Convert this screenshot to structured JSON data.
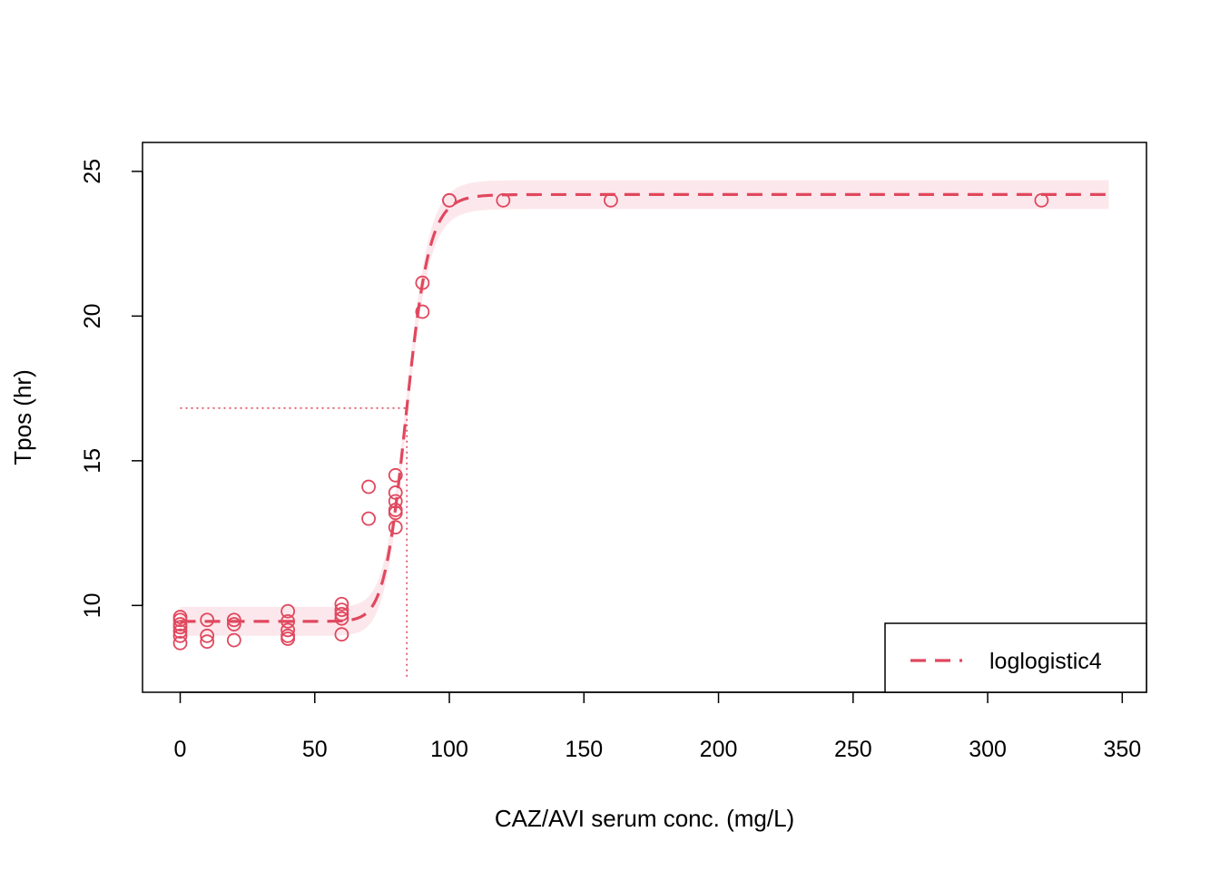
{
  "chart_data": {
    "type": "scatter",
    "xlabel": "CAZ/AVI serum conc. (mg/L)",
    "ylabel": "Tpos (hr)",
    "xlim": [
      -14,
      359
    ],
    "ylim": [
      7.0,
      26.0
    ],
    "xticks": [
      0,
      50,
      100,
      150,
      200,
      250,
      300,
      350
    ],
    "yticks": [
      10,
      15,
      20,
      25
    ],
    "xtick_labels": [
      "0",
      "50",
      "100",
      "150",
      "200",
      "250",
      "300",
      "350"
    ],
    "ytick_labels": [
      "10",
      "15",
      "20",
      "25"
    ],
    "color": "#E0485E",
    "band_color": "#FCE8EC",
    "grid": false,
    "legend": {
      "position": "bottom-right",
      "entries": [
        {
          "label": "loglogistic4",
          "style": "dashed-line"
        }
      ]
    },
    "points": [
      {
        "x": 0,
        "y": 9.6
      },
      {
        "x": 0,
        "y": 9.5
      },
      {
        "x": 0,
        "y": 9.35
      },
      {
        "x": 0,
        "y": 9.25
      },
      {
        "x": 0,
        "y": 9.1
      },
      {
        "x": 0,
        "y": 8.95
      },
      {
        "x": 0,
        "y": 8.7
      },
      {
        "x": 10,
        "y": 9.5
      },
      {
        "x": 10,
        "y": 8.95
      },
      {
        "x": 10,
        "y": 8.75
      },
      {
        "x": 20,
        "y": 9.5
      },
      {
        "x": 20,
        "y": 9.35
      },
      {
        "x": 20,
        "y": 8.8
      },
      {
        "x": 40,
        "y": 9.8
      },
      {
        "x": 40,
        "y": 9.45
      },
      {
        "x": 40,
        "y": 9.15
      },
      {
        "x": 40,
        "y": 8.95
      },
      {
        "x": 40,
        "y": 8.85
      },
      {
        "x": 60,
        "y": 10.05
      },
      {
        "x": 60,
        "y": 9.85
      },
      {
        "x": 60,
        "y": 9.7
      },
      {
        "x": 60,
        "y": 9.55
      },
      {
        "x": 60,
        "y": 9.0
      },
      {
        "x": 70,
        "y": 14.1
      },
      {
        "x": 70,
        "y": 13.0
      },
      {
        "x": 80,
        "y": 14.5
      },
      {
        "x": 80,
        "y": 13.9
      },
      {
        "x": 80,
        "y": 13.6
      },
      {
        "x": 80,
        "y": 13.3
      },
      {
        "x": 80,
        "y": 13.2
      },
      {
        "x": 80,
        "y": 12.7
      },
      {
        "x": 90,
        "y": 21.15
      },
      {
        "x": 90,
        "y": 20.15
      },
      {
        "x": 100,
        "y": 24.0
      },
      {
        "x": 100,
        "y": 24.0
      },
      {
        "x": 120,
        "y": 24.0
      },
      {
        "x": 160,
        "y": 24.0
      },
      {
        "x": 320,
        "y": 24.0
      }
    ],
    "model": {
      "name": "loglogistic4",
      "lower": 9.45,
      "upper": 24.2,
      "ec50": 84.2,
      "hill": 20,
      "x_range": [
        0,
        345
      ],
      "band_halfwidth": 0.5
    },
    "reference": {
      "ec50_x": 84.2,
      "mid_y": 16.82,
      "x_start": 0,
      "y_start": 7.5
    }
  }
}
